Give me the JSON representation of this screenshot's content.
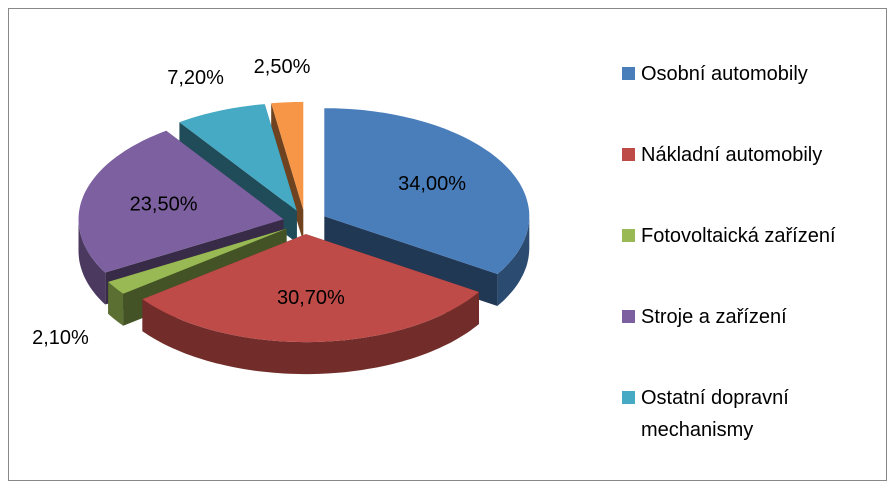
{
  "chart_data": {
    "type": "pie3d",
    "categories": [
      "Osobní automobily",
      "Nákladní automobily",
      "Fotovoltaická zařízení",
      "Stroje a zařízení",
      "Ostatní dopravní mechanismy",
      null
    ],
    "values": [
      34.0,
      30.7,
      2.1,
      23.5,
      7.2,
      2.5
    ],
    "value_labels": [
      "34,00%",
      "30,70%",
      "2,10%",
      "23,50%",
      "7,20%",
      "2,50%"
    ],
    "colors": [
      "#4a7ebb",
      "#be4b48",
      "#98b954",
      "#7d60a0",
      "#46aac5",
      "#f79646"
    ]
  }
}
